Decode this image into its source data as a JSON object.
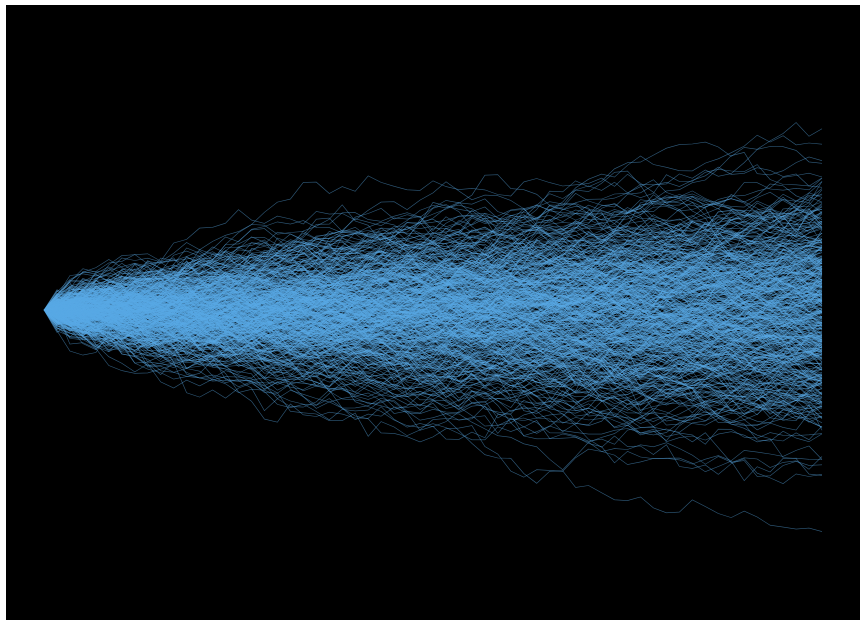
{
  "chart_data": {
    "type": "line",
    "title": "",
    "xlabel": "",
    "ylabel": "",
    "background_color": "#000000",
    "line_color": "#5aa9e6",
    "grid": false,
    "legend": "none",
    "axes_visible": false,
    "series_count": 500,
    "steps": 60,
    "start_value": 0,
    "step_sd": 1,
    "xlim": [
      0,
      60
    ],
    "ylim": [
      -36,
      36
    ],
    "envelope": {
      "x": [
        0,
        10,
        20,
        30,
        40,
        50,
        60
      ],
      "upper": [
        0,
        11,
        19,
        25,
        28,
        30,
        32
      ],
      "lower": [
        0,
        -10,
        -17,
        -23,
        -27,
        -30,
        -33
      ]
    }
  }
}
